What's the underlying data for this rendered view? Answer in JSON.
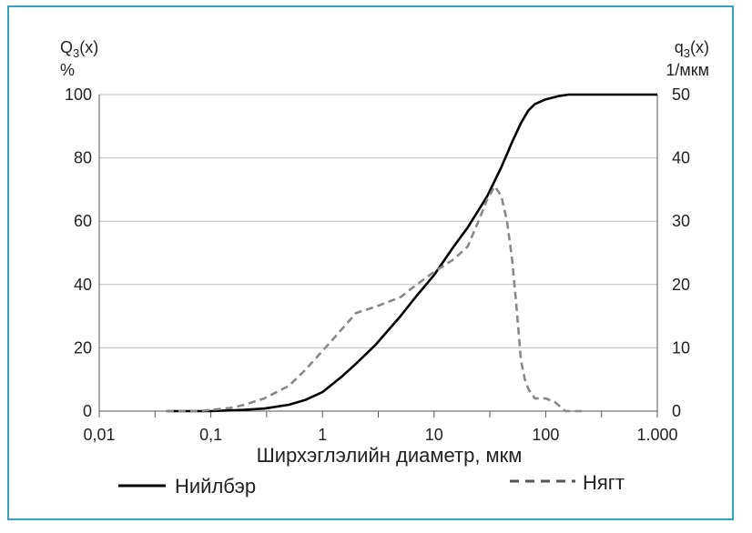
{
  "chart_data": {
    "type": "line",
    "xlabel": "Ширхэглэлийн диаметр, мкм",
    "x_scale": "log",
    "xlim": [
      0.01,
      1000
    ],
    "x_ticks": [
      0.01,
      0.1,
      1,
      10,
      100,
      1000
    ],
    "x_tick_labels": [
      "0,01",
      "0,1",
      "1",
      "10",
      "100",
      "1.000"
    ],
    "ylabel_left": {
      "main": "Q",
      "sub": "3",
      "arg": "(x)",
      "unit": "%"
    },
    "ylabel_right": {
      "main": "q",
      "sub": "3",
      "arg": "(x)",
      "unit": "1/мкм"
    },
    "ylim_left": [
      0,
      100
    ],
    "ylim_right": [
      0,
      50
    ],
    "y_ticks_left": [
      "0",
      "20",
      "40",
      "60",
      "80",
      "100"
    ],
    "y_ticks_right": [
      "0",
      "10",
      "20",
      "30",
      "40",
      "50"
    ],
    "grid": "horizontal",
    "legend_position": "bottom",
    "series": [
      {
        "name": "Нийлбэр",
        "axis": "left",
        "style": "solid",
        "color": "#000000",
        "x": [
          0.04,
          0.1,
          0.2,
          0.3,
          0.5,
          0.7,
          1,
          1.5,
          2,
          3,
          5,
          7,
          10,
          15,
          20,
          30,
          40,
          50,
          60,
          70,
          80,
          100,
          130,
          160,
          200,
          300,
          500,
          1000
        ],
        "y": [
          0,
          0,
          0.4,
          0.8,
          2,
          3.5,
          6,
          11,
          15,
          21,
          30,
          36.5,
          43,
          52,
          58,
          68,
          77,
          85,
          91,
          95,
          97,
          98.5,
          99.5,
          100,
          100,
          100,
          100,
          100
        ]
      },
      {
        "name": "Нягт",
        "axis": "right",
        "style": "dashed",
        "color": "#888888",
        "x": [
          0.04,
          0.08,
          0.1,
          0.15,
          0.2,
          0.3,
          0.5,
          0.7,
          1,
          1.5,
          2,
          3,
          5,
          7,
          10,
          15,
          20,
          25,
          30,
          35,
          40,
          45,
          50,
          55,
          60,
          65,
          70,
          80,
          100,
          120,
          150,
          200,
          230
        ],
        "y": [
          0,
          0,
          0.2,
          0.5,
          1,
          2,
          4,
          6.5,
          9.5,
          13,
          15.5,
          16.5,
          18,
          20,
          22,
          24,
          26,
          30,
          33.5,
          35.5,
          34,
          30,
          24,
          16,
          8,
          5,
          3.5,
          2,
          2,
          1.5,
          0,
          0,
          0
        ]
      }
    ]
  }
}
